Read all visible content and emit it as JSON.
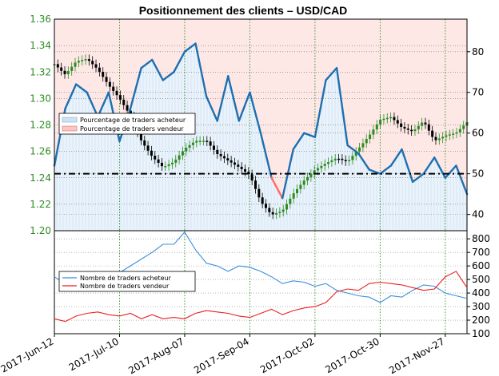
{
  "chart_data": [
    {
      "type": "line",
      "title": "Positionnement des clients – USD/CAD",
      "xlabel": "",
      "ylabel": "",
      "x": [
        "2017-Jun-12",
        "2017-Jun-16",
        "2017-Jun-21",
        "2017-Jun-26",
        "2017-Jun-30",
        "2017-Jul-05",
        "2017-Jul-10",
        "2017-Jul-14",
        "2017-Jul-19",
        "2017-Jul-24",
        "2017-Jul-28",
        "2017-Aug-02",
        "2017-Aug-07",
        "2017-Aug-11",
        "2017-Aug-16",
        "2017-Aug-21",
        "2017-Aug-25",
        "2017-Aug-30",
        "2017-Sep-04",
        "2017-Sep-08",
        "2017-Sep-13",
        "2017-Sep-18",
        "2017-Sep-22",
        "2017-Sep-27",
        "2017-Oct-02",
        "2017-Oct-06",
        "2017-Oct-11",
        "2017-Oct-16",
        "2017-Oct-20",
        "2017-Oct-25",
        "2017-Oct-30",
        "2017-Nov-03",
        "2017-Nov-08",
        "2017-Nov-13",
        "2017-Nov-17",
        "2017-Nov-22",
        "2017-Nov-27",
        "2017-Dec-01",
        "2017-Dec-06"
      ],
      "x_tick_labels": [
        "2017-Jun-12",
        "2017-Jul-10",
        "2017-Aug-07",
        "2017-Sep-04",
        "2017-Oct-02",
        "2017-Oct-30",
        "2017-Nov-27"
      ],
      "price_axis": {
        "ylim": [
          1.2,
          1.36
        ],
        "ticks": [
          "1.20",
          "1.22",
          "1.24",
          "1.26",
          "1.28",
          "1.30",
          "1.32",
          "1.34",
          "1.36"
        ]
      },
      "percent_axis": {
        "ylim": [
          36,
          88
        ],
        "ticks": [
          "40",
          "50",
          "60",
          "70",
          "80"
        ],
        "reference_line": 50
      },
      "series": [
        {
          "name": "Pourcentage de traders acheteur",
          "color": "#1f6fb0",
          "values": [
            52,
            66,
            72,
            70,
            64,
            70,
            58,
            66,
            76,
            78,
            73,
            75,
            80,
            82,
            69,
            63,
            74,
            63,
            70,
            60,
            49,
            44,
            56,
            60,
            59,
            73,
            76,
            57,
            55,
            51,
            50,
            52,
            56,
            48,
            50,
            54,
            49,
            52,
            45
          ]
        },
        {
          "name": "Pourcentage de traders vendeur",
          "color": "#ff6b6b"
        },
        {
          "name": "Prix USD/CAD",
          "color": "#000000",
          "values": [
            1.326,
            1.318,
            1.328,
            1.33,
            1.322,
            1.31,
            1.3,
            1.287,
            1.268,
            1.256,
            1.248,
            1.252,
            1.262,
            1.268,
            1.268,
            1.258,
            1.253,
            1.248,
            1.242,
            1.222,
            1.212,
            1.215,
            1.228,
            1.238,
            1.246,
            1.251,
            1.255,
            1.252,
            1.262,
            1.272,
            1.284,
            1.286,
            1.278,
            1.275,
            1.283,
            1.268,
            1.272,
            1.274,
            1.282
          ]
        }
      ]
    },
    {
      "type": "line",
      "ylim": [
        100,
        860
      ],
      "y_ticks": [
        "100",
        "200",
        "300",
        "400",
        "500",
        "600",
        "700",
        "800"
      ],
      "series": [
        {
          "name": "Nombre de traders acheteur",
          "color": "#3a8fdc",
          "values": [
            520,
            470,
            560,
            500,
            480,
            540,
            550,
            600,
            650,
            700,
            760,
            760,
            850,
            720,
            620,
            600,
            560,
            600,
            590,
            560,
            520,
            470,
            490,
            480,
            450,
            470,
            420,
            400,
            380,
            370,
            330,
            380,
            370,
            420,
            460,
            450,
            400,
            380,
            360
          ]
        },
        {
          "name": "Nombre de traders vendeur",
          "color": "#e82020",
          "values": [
            210,
            190,
            230,
            250,
            260,
            240,
            230,
            250,
            210,
            240,
            210,
            220,
            210,
            250,
            270,
            260,
            250,
            230,
            220,
            250,
            280,
            240,
            270,
            290,
            300,
            330,
            410,
            430,
            420,
            470,
            480,
            470,
            460,
            440,
            420,
            430,
            520,
            560,
            440
          ]
        }
      ]
    }
  ]
}
